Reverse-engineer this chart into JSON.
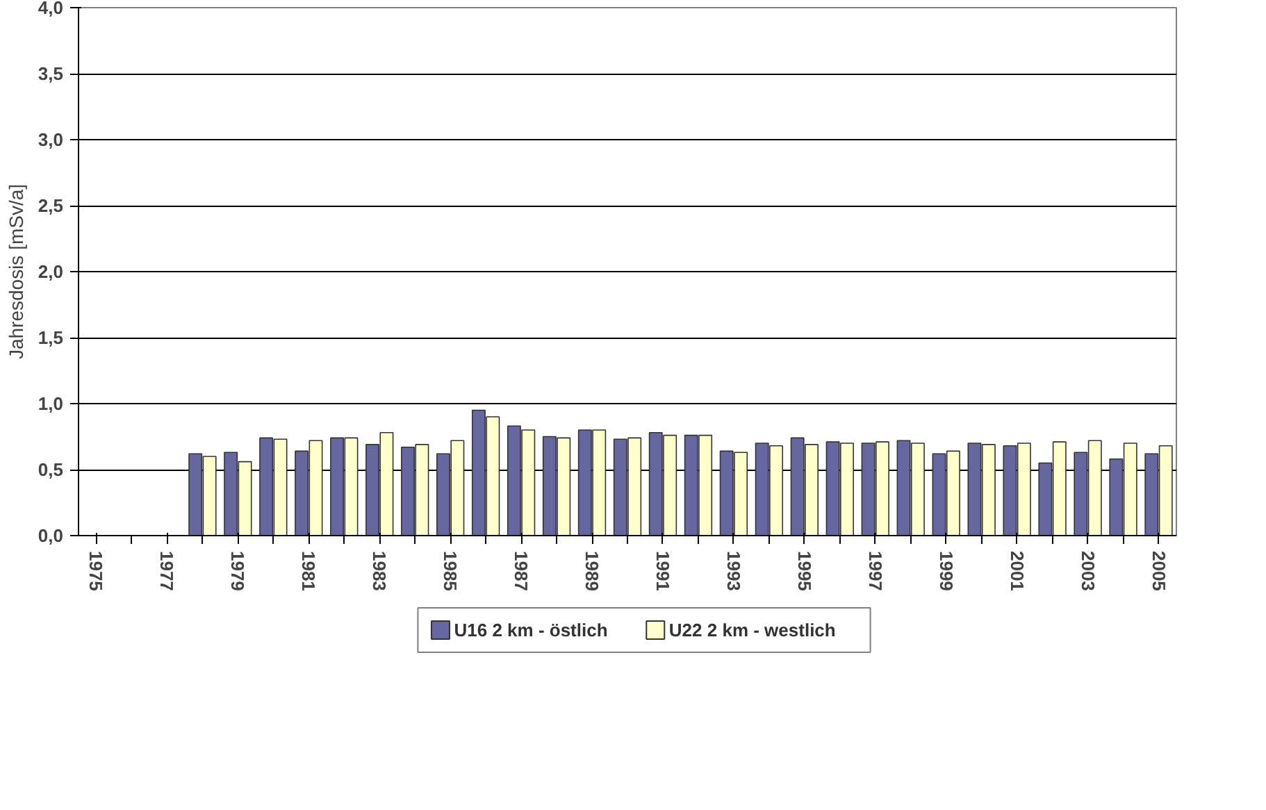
{
  "chart_data": {
    "type": "bar",
    "ylabel": "Jahresdosis [mSv/a]",
    "categories": [
      "1975",
      null,
      "1977",
      null,
      "1979",
      null,
      "1981",
      null,
      "1983",
      null,
      "1985",
      null,
      "1987",
      null,
      "1989",
      null,
      "1991",
      null,
      "1993",
      null,
      "1995",
      null,
      "1997",
      null,
      "1999",
      null,
      "2001",
      null,
      "2003",
      null,
      "2005"
    ],
    "series": [
      {
        "name": "U16 2 km - östlich",
        "color": "#6666a0",
        "values": [
          0,
          0,
          0,
          0.62,
          0.63,
          0.74,
          0.64,
          0.74,
          0.69,
          0.67,
          0.62,
          0.95,
          0.83,
          0.75,
          0.8,
          0.73,
          0.78,
          0.76,
          0.64,
          0.7,
          0.74,
          0.71,
          0.7,
          0.72,
          0.62,
          0.7,
          0.68,
          0.55,
          0.63,
          0.58,
          0.62
        ]
      },
      {
        "name": "U22 2 km - westlich",
        "color": "#ffffcc",
        "values": [
          0,
          0,
          0,
          0.6,
          0.56,
          0.73,
          0.72,
          0.74,
          0.78,
          0.69,
          0.72,
          0.9,
          0.8,
          0.74,
          0.8,
          0.74,
          0.76,
          0.76,
          0.63,
          0.68,
          0.69,
          0.7,
          0.71,
          0.7,
          0.64,
          0.69,
          0.7,
          0.71,
          0.72,
          0.7,
          0.68
        ]
      }
    ],
    "ylim": [
      0,
      4
    ],
    "yticks": [
      {
        "value": 0,
        "label": "0,0"
      },
      {
        "value": 0.5,
        "label": "0,5"
      },
      {
        "value": 1,
        "label": "1,0"
      },
      {
        "value": 1.5,
        "label": "1,5"
      },
      {
        "value": 2,
        "label": "2,0"
      },
      {
        "value": 2.5,
        "label": "2,5"
      },
      {
        "value": 3,
        "label": "3,0"
      },
      {
        "value": 3.5,
        "label": "3,5"
      },
      {
        "value": 4,
        "label": "4,0"
      }
    ],
    "grid": "y",
    "legend": "bottom"
  }
}
